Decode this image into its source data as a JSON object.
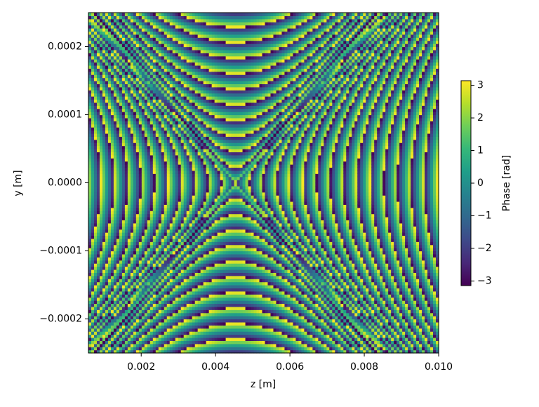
{
  "chart_data": {
    "type": "heatmap",
    "colormap": "viridis",
    "x_label": "z [m]",
    "y_label": "y [m]",
    "colorbar_label": "Phase [rad]",
    "xlim": [
      0.00058,
      0.01
    ],
    "ylim": [
      -0.00025,
      0.00025
    ],
    "xticks": [
      0.002,
      0.004,
      0.006,
      0.008,
      {
        "value": 0.01,
        "label": "0.010"
      }
    ],
    "yticks": [
      {
        "value": -0.0002,
        "label": "−0.0002"
      },
      {
        "value": -0.0001,
        "label": "−0.0001"
      },
      {
        "value": 0,
        "label": "0.0000"
      },
      0.0001,
      0.0002
    ],
    "clim": [
      -3.14159,
      3.14159
    ],
    "cticks": [
      {
        "value": -3,
        "label": "−3"
      },
      {
        "value": -2,
        "label": "−2"
      },
      {
        "value": -1,
        "label": "−1"
      },
      0,
      1,
      2,
      3
    ]
  }
}
